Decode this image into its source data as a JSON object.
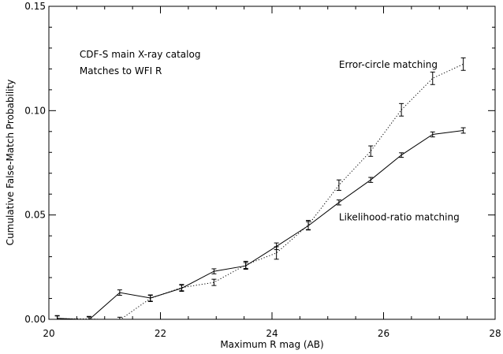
{
  "chart_data": {
    "type": "line",
    "title": "",
    "xlabel": "Maximum R mag (AB)",
    "ylabel": "Cumulative False-Match Probability",
    "xlim": [
      20,
      28
    ],
    "ylim": [
      0,
      0.15
    ],
    "grid": false,
    "legend": "none",
    "x_ticks": [
      {
        "value": 20,
        "label": "20"
      },
      {
        "value": 22,
        "label": "22"
      },
      {
        "value": 24,
        "label": "24"
      },
      {
        "value": 26,
        "label": "26"
      },
      {
        "value": 28,
        "label": "28"
      }
    ],
    "y_ticks": [
      {
        "value": 0,
        "label": "0.00"
      },
      {
        "value": 0.05,
        "label": "0.05"
      },
      {
        "value": 0.1,
        "label": "0.10"
      },
      {
        "value": 0.15,
        "label": "0.15"
      }
    ],
    "annotations": [
      {
        "text": "CDF-S main X-ray catalog",
        "x": 20.55,
        "y": 0.1255
      },
      {
        "text": "Matches to WFI R",
        "x": 20.55,
        "y": 0.1175
      },
      {
        "text": "Error-circle matching",
        "x": 25.2,
        "y": 0.1205
      },
      {
        "text": "Likelihood-ratio matching",
        "x": 25.2,
        "y": 0.0475
      }
    ],
    "series": [
      {
        "style": "solid",
        "color": "#000000",
        "points": [
          {
            "x": 20.15,
            "y": 0.0005,
            "err": 0.0013
          },
          {
            "x": 20.72,
            "y": -0.0002,
            "err": 0.0013
          },
          {
            "x": 21.27,
            "y": 0.0128,
            "err": 0.0013
          },
          {
            "x": 21.82,
            "y": 0.0102,
            "err": 0.0015
          },
          {
            "x": 22.38,
            "y": 0.0149,
            "err": 0.0015
          },
          {
            "x": 22.96,
            "y": 0.023,
            "err": 0.0012
          },
          {
            "x": 23.53,
            "y": 0.0256,
            "err": 0.0016
          },
          {
            "x": 24.08,
            "y": 0.035,
            "err": 0.0016
          },
          {
            "x": 24.65,
            "y": 0.0448,
            "err": 0.002
          },
          {
            "x": 25.2,
            "y": 0.056,
            "err": 0.0012
          },
          {
            "x": 25.77,
            "y": 0.0668,
            "err": 0.0012
          },
          {
            "x": 26.32,
            "y": 0.0787,
            "err": 0.0011
          },
          {
            "x": 26.88,
            "y": 0.0886,
            "err": 0.0012
          },
          {
            "x": 27.43,
            "y": 0.0905,
            "err": 0.0013
          }
        ]
      },
      {
        "style": "dotted",
        "color": "#000000",
        "points": [
          {
            "x": 20.15,
            "y": 0.0003,
            "err": 0.0013
          },
          {
            "x": 20.72,
            "y": 0.0002,
            "err": 0.0012
          },
          {
            "x": 21.27,
            "y": -0.0003,
            "err": 0.0013
          },
          {
            "x": 21.82,
            "y": 0.01,
            "err": 0.0015
          },
          {
            "x": 22.38,
            "y": 0.0152,
            "err": 0.0015
          },
          {
            "x": 22.96,
            "y": 0.0177,
            "err": 0.0015
          },
          {
            "x": 23.53,
            "y": 0.0261,
            "err": 0.0017
          },
          {
            "x": 24.08,
            "y": 0.0318,
            "err": 0.003
          },
          {
            "x": 24.65,
            "y": 0.0452,
            "err": 0.0022
          },
          {
            "x": 25.2,
            "y": 0.0643,
            "err": 0.0025
          },
          {
            "x": 25.77,
            "y": 0.0806,
            "err": 0.0025
          },
          {
            "x": 26.32,
            "y": 0.1004,
            "err": 0.003
          },
          {
            "x": 26.88,
            "y": 0.1155,
            "err": 0.003
          },
          {
            "x": 27.43,
            "y": 0.1223,
            "err": 0.003
          }
        ]
      }
    ]
  }
}
